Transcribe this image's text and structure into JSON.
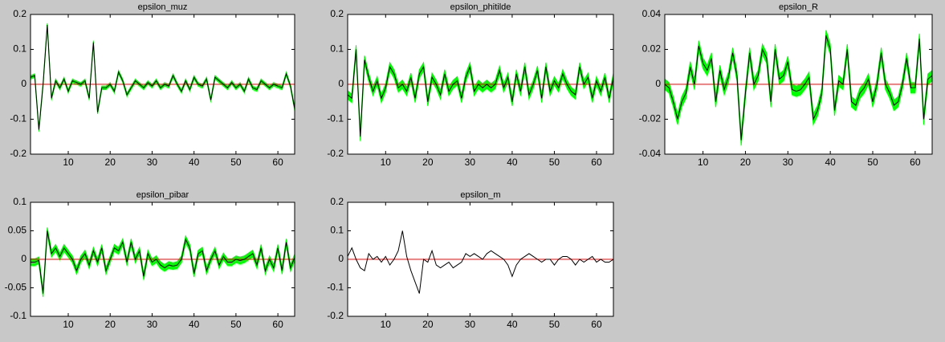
{
  "chart_data": [
    {
      "type": "line",
      "title": "epsilon_muz",
      "x": [
        1,
        2,
        3,
        4,
        5,
        6,
        7,
        8,
        9,
        10,
        11,
        12,
        13,
        14,
        15,
        16,
        17,
        18,
        19,
        20,
        21,
        22,
        23,
        24,
        25,
        26,
        27,
        28,
        29,
        30,
        31,
        32,
        33,
        34,
        35,
        36,
        37,
        38,
        39,
        40,
        41,
        42,
        43,
        44,
        45,
        46,
        47,
        48,
        49,
        50,
        51,
        52,
        53,
        54,
        55,
        56,
        57,
        58,
        59,
        60,
        61,
        62,
        63,
        64
      ],
      "series": [
        {
          "color": "#000000",
          "values": [
            0.02,
            0.025,
            -0.13,
            0.0,
            0.17,
            -0.04,
            0.01,
            -0.01,
            0.015,
            -0.02,
            0.01,
            0.005,
            0.0,
            0.01,
            -0.04,
            0.12,
            -0.08,
            -0.01,
            -0.01,
            0.0,
            -0.02,
            0.035,
            0.01,
            -0.03,
            -0.01,
            0.01,
            0.0,
            -0.01,
            0.005,
            -0.005,
            0.01,
            -0.01,
            0.0,
            -0.005,
            0.025,
            0.0,
            -0.02,
            0.01,
            -0.015,
            0.02,
            0.0,
            -0.005,
            0.015,
            -0.045,
            0.02,
            0.01,
            0.0,
            -0.01,
            0.005,
            -0.01,
            0.0,
            -0.02,
            0.015,
            -0.01,
            -0.015,
            0.01,
            0.0,
            -0.01,
            0.0,
            -0.005,
            -0.01,
            0.03,
            -0.005,
            -0.07
          ]
        }
      ],
      "band": {
        "color": "#00ff00",
        "halfwidth": 0.005
      },
      "hline": {
        "value": 0,
        "color": "#ff0000"
      },
      "xlim": [
        1,
        64
      ],
      "xticks": [
        10,
        20,
        30,
        40,
        50,
        60
      ],
      "ylim": [
        -0.2,
        0.2
      ],
      "yticks": [
        -0.2,
        -0.1,
        0,
        0.1,
        0.2
      ]
    },
    {
      "type": "line",
      "title": "epsilon_phitilde",
      "x": [
        1,
        2,
        3,
        4,
        5,
        6,
        7,
        8,
        9,
        10,
        11,
        12,
        13,
        14,
        15,
        16,
        17,
        18,
        19,
        20,
        21,
        22,
        23,
        24,
        25,
        26,
        27,
        28,
        29,
        30,
        31,
        32,
        33,
        34,
        35,
        36,
        37,
        38,
        39,
        40,
        41,
        42,
        43,
        44,
        45,
        46,
        47,
        48,
        49,
        50,
        51,
        52,
        53,
        54,
        55,
        56,
        57,
        58,
        59,
        60,
        61,
        62,
        63,
        64
      ],
      "series": [
        {
          "color": "#000000",
          "values": [
            -0.03,
            -0.04,
            0.1,
            -0.15,
            0.07,
            0.02,
            -0.02,
            0.01,
            -0.04,
            -0.01,
            0.05,
            0.03,
            -0.01,
            0.0,
            -0.02,
            0.02,
            -0.04,
            0.03,
            0.05,
            -0.05,
            0.02,
            0.0,
            -0.03,
            0.03,
            -0.02,
            0.0,
            0.01,
            -0.04,
            0.02,
            0.05,
            -0.02,
            0.0,
            -0.01,
            0.0,
            -0.01,
            0.0,
            0.04,
            -0.01,
            0.02,
            -0.05,
            0.03,
            -0.02,
            0.05,
            -0.03,
            0.0,
            0.04,
            -0.04,
            0.05,
            -0.02,
            0.01,
            -0.01,
            0.03,
            0.0,
            -0.02,
            -0.03,
            0.05,
            0.0,
            0.02,
            -0.04,
            0.01,
            -0.02,
            0.02,
            -0.04,
            0.02
          ]
        }
      ],
      "band": {
        "color": "#00ff00",
        "halfwidth": 0.012
      },
      "hline": {
        "value": 0,
        "color": "#ff0000"
      },
      "xlim": [
        1,
        64
      ],
      "xticks": [
        10,
        20,
        30,
        40,
        50,
        60
      ],
      "ylim": [
        -0.2,
        0.2
      ],
      "yticks": [
        -0.2,
        -0.1,
        0,
        0.1,
        0.2
      ]
    },
    {
      "type": "line",
      "title": "epsilon_R",
      "x": [
        1,
        2,
        3,
        4,
        5,
        6,
        7,
        8,
        9,
        10,
        11,
        12,
        13,
        14,
        15,
        16,
        17,
        18,
        19,
        20,
        21,
        22,
        23,
        24,
        25,
        26,
        27,
        28,
        29,
        30,
        31,
        32,
        33,
        34,
        35,
        36,
        37,
        38,
        39,
        40,
        41,
        42,
        43,
        44,
        45,
        46,
        47,
        48,
        49,
        50,
        51,
        52,
        53,
        54,
        55,
        56,
        57,
        58,
        59,
        60,
        61,
        62,
        63,
        64
      ],
      "series": [
        {
          "color": "#000000",
          "values": [
            0,
            -0.002,
            -0.01,
            -0.02,
            -0.01,
            -0.005,
            0.01,
            0.0,
            0.022,
            0.012,
            0.008,
            0.015,
            -0.01,
            0.008,
            -0.003,
            0.004,
            0.018,
            0.005,
            -0.032,
            -0.005,
            0.018,
            0.0,
            0.005,
            0.02,
            0.015,
            -0.01,
            0.02,
            0.003,
            0.005,
            0.013,
            -0.003,
            -0.004,
            -0.003,
            0.0,
            0.004,
            -0.02,
            -0.015,
            -0.005,
            0.028,
            0.02,
            -0.015,
            0.002,
            0.0,
            0.02,
            -0.01,
            -0.012,
            -0.005,
            -0.002,
            0.003,
            -0.01,
            0.0,
            0.018,
            0.0,
            -0.005,
            -0.012,
            -0.01,
            0.0,
            0.015,
            -0.002,
            -0.002,
            0.026,
            -0.02,
            0.003,
            0.005
          ]
        }
      ],
      "band": {
        "color": "#00ff00",
        "halfwidth": 0.003
      },
      "hline": {
        "value": 0,
        "color": "#ff0000"
      },
      "xlim": [
        1,
        64
      ],
      "xticks": [
        10,
        20,
        30,
        40,
        50,
        60
      ],
      "ylim": [
        -0.04,
        0.04
      ],
      "yticks": [
        -0.04,
        -0.02,
        0,
        0.02,
        0.04
      ]
    },
    {
      "type": "line",
      "title": "epsilon_pibar",
      "x": [
        1,
        2,
        3,
        4,
        5,
        6,
        7,
        8,
        9,
        10,
        11,
        12,
        13,
        14,
        15,
        16,
        17,
        18,
        19,
        20,
        21,
        22,
        23,
        24,
        25,
        26,
        27,
        28,
        29,
        30,
        31,
        32,
        33,
        34,
        35,
        36,
        37,
        38,
        39,
        40,
        41,
        42,
        43,
        44,
        45,
        46,
        47,
        48,
        49,
        50,
        51,
        52,
        53,
        54,
        55,
        56,
        57,
        58,
        59,
        60,
        61,
        62,
        63,
        64
      ],
      "series": [
        {
          "color": "#000000",
          "values": [
            -0.005,
            -0.005,
            -0.002,
            -0.06,
            0.05,
            0.01,
            0.02,
            0.005,
            0.02,
            0.01,
            0.0,
            -0.02,
            0.0,
            0.01,
            -0.01,
            0.015,
            -0.005,
            0.02,
            -0.02,
            0.0,
            0.02,
            0.015,
            0.03,
            -0.005,
            0.03,
            0.0,
            0.015,
            -0.03,
            0.01,
            -0.005,
            0.0,
            -0.01,
            -0.015,
            -0.01,
            -0.012,
            -0.01,
            0.0,
            0.035,
            0.02,
            -0.025,
            0.01,
            0.015,
            -0.02,
            0.0,
            0.015,
            -0.01,
            0.005,
            -0.005,
            -0.005,
            0.0,
            -0.002,
            0.0,
            0.005,
            0.01,
            -0.01,
            0.02,
            -0.02,
            0.0,
            -0.015,
            0.02,
            -0.02,
            0.03,
            -0.015,
            0.003
          ]
        }
      ],
      "band": {
        "color": "#00ff00",
        "halfwidth": 0.006
      },
      "hline": {
        "value": 0,
        "color": "#ff0000"
      },
      "xlim": [
        1,
        64
      ],
      "xticks": [
        10,
        20,
        30,
        40,
        50,
        60
      ],
      "ylim": [
        -0.1,
        0.1
      ],
      "yticks": [
        -0.1,
        -0.05,
        0,
        0.05,
        0.1
      ]
    },
    {
      "type": "line",
      "title": "epsilon_m",
      "x": [
        1,
        2,
        3,
        4,
        5,
        6,
        7,
        8,
        9,
        10,
        11,
        12,
        13,
        14,
        15,
        16,
        17,
        18,
        19,
        20,
        21,
        22,
        23,
        24,
        25,
        26,
        27,
        28,
        29,
        30,
        31,
        32,
        33,
        34,
        35,
        36,
        37,
        38,
        39,
        40,
        41,
        42,
        43,
        44,
        45,
        46,
        47,
        48,
        49,
        50,
        51,
        52,
        53,
        54,
        55,
        56,
        57,
        58,
        59,
        60,
        61,
        62,
        63,
        64
      ],
      "series": [
        {
          "color": "#000000",
          "values": [
            0.01,
            0.04,
            0.0,
            -0.03,
            -0.04,
            0.02,
            0.0,
            0.01,
            -0.01,
            0.01,
            -0.02,
            0.0,
            0.03,
            0.1,
            0.01,
            -0.04,
            -0.08,
            -0.12,
            0.0,
            -0.01,
            0.03,
            -0.02,
            -0.03,
            -0.02,
            -0.01,
            -0.03,
            -0.02,
            -0.01,
            0.02,
            0.01,
            0.02,
            0.01,
            0.0,
            0.02,
            0.03,
            0.02,
            0.01,
            0.0,
            -0.02,
            -0.06,
            -0.02,
            0.0,
            0.01,
            0.02,
            0.01,
            0.0,
            -0.01,
            0.0,
            0.0,
            -0.02,
            0.0,
            0.01,
            0.01,
            0.0,
            -0.02,
            0.0,
            -0.01,
            0.0,
            0.01,
            -0.01,
            0.0,
            -0.01,
            -0.01,
            0.0
          ]
        }
      ],
      "hline": {
        "value": 0,
        "color": "#ff0000"
      },
      "xlim": [
        1,
        64
      ],
      "xticks": [
        10,
        20,
        30,
        40,
        50,
        60
      ],
      "ylim": [
        -0.2,
        0.2
      ],
      "yticks": [
        -0.2,
        -0.1,
        0,
        0.1,
        0.2
      ]
    }
  ]
}
